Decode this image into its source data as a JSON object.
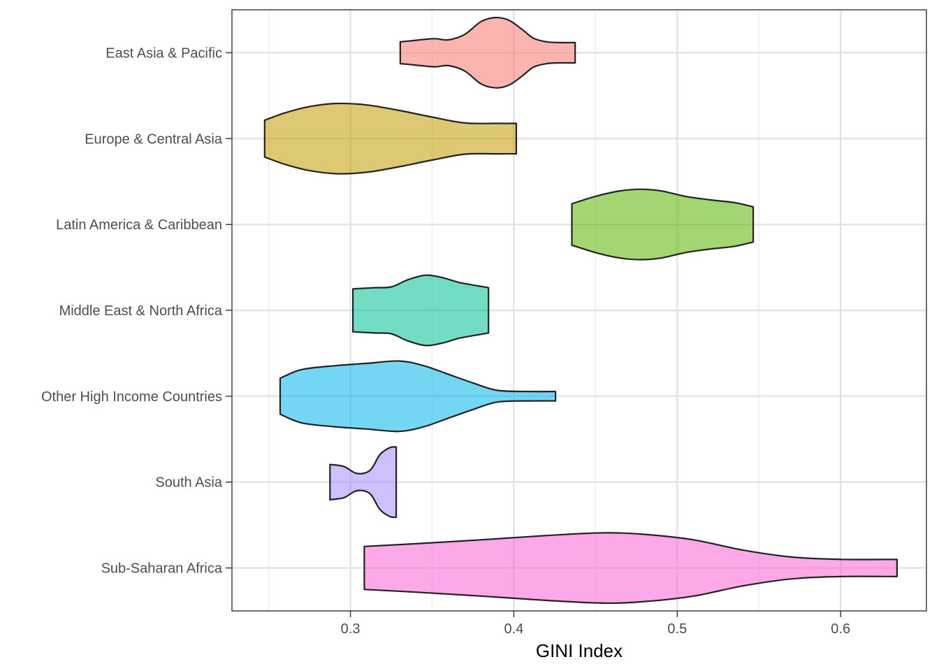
{
  "chart_data": {
    "type": "violin",
    "xlabel": "GINI Index",
    "ylabel": "",
    "xlim": [
      0.2275,
      0.6525
    ],
    "x_ticks": [
      "0.3",
      "0.4",
      "0.5",
      "0.6"
    ],
    "x_tick_values": [
      0.3,
      0.4,
      0.5,
      0.6
    ],
    "x_minor_values": [
      0.25,
      0.35,
      0.45,
      0.55
    ],
    "grid": true,
    "legend": "none",
    "categories": [
      "East Asia & Pacific",
      "Europe & Central Asia",
      "Latin America & Caribbean",
      "Middle East & North Africa",
      "Other High Income Countries",
      "South Asia",
      "Sub-Saharan Africa"
    ],
    "series": [
      {
        "color": "#F8766D",
        "profile": [
          [
            0.3305,
            0.28
          ],
          [
            0.336,
            0.3
          ],
          [
            0.345,
            0.34
          ],
          [
            0.352,
            0.36
          ],
          [
            0.36,
            0.33
          ],
          [
            0.37,
            0.47
          ],
          [
            0.38,
            0.8
          ],
          [
            0.389,
            0.9
          ],
          [
            0.397,
            0.83
          ],
          [
            0.405,
            0.6
          ],
          [
            0.412,
            0.37
          ],
          [
            0.42,
            0.28
          ],
          [
            0.428,
            0.26
          ],
          [
            0.4375,
            0.26
          ]
        ]
      },
      {
        "color": "#C49A00",
        "profile": [
          [
            0.2475,
            0.47
          ],
          [
            0.26,
            0.66
          ],
          [
            0.275,
            0.82
          ],
          [
            0.292,
            0.9
          ],
          [
            0.31,
            0.86
          ],
          [
            0.33,
            0.72
          ],
          [
            0.35,
            0.55
          ],
          [
            0.37,
            0.4
          ],
          [
            0.39,
            0.39
          ],
          [
            0.4015,
            0.39
          ]
        ]
      },
      {
        "color": "#53B400",
        "profile": [
          [
            0.4355,
            0.53
          ],
          [
            0.45,
            0.72
          ],
          [
            0.465,
            0.86
          ],
          [
            0.478,
            0.9
          ],
          [
            0.49,
            0.86
          ],
          [
            0.505,
            0.72
          ],
          [
            0.52,
            0.63
          ],
          [
            0.535,
            0.56
          ],
          [
            0.5465,
            0.45
          ]
        ]
      },
      {
        "color": "#00C094",
        "profile": [
          [
            0.3015,
            0.55
          ],
          [
            0.315,
            0.58
          ],
          [
            0.325,
            0.6
          ],
          [
            0.335,
            0.78
          ],
          [
            0.346,
            0.9
          ],
          [
            0.356,
            0.84
          ],
          [
            0.366,
            0.72
          ],
          [
            0.376,
            0.64
          ],
          [
            0.3845,
            0.58
          ]
        ]
      },
      {
        "color": "#00B6EB",
        "profile": [
          [
            0.257,
            0.46
          ],
          [
            0.27,
            0.68
          ],
          [
            0.29,
            0.78
          ],
          [
            0.31,
            0.84
          ],
          [
            0.33,
            0.9
          ],
          [
            0.345,
            0.78
          ],
          [
            0.36,
            0.56
          ],
          [
            0.375,
            0.34
          ],
          [
            0.39,
            0.15
          ],
          [
            0.41,
            0.12
          ],
          [
            0.4255,
            0.12
          ]
        ]
      },
      {
        "color": "#A58AFF",
        "profile": [
          [
            0.2875,
            0.45
          ],
          [
            0.296,
            0.4
          ],
          [
            0.304,
            0.22
          ],
          [
            0.312,
            0.3
          ],
          [
            0.318,
            0.7
          ],
          [
            0.324,
            0.88
          ],
          [
            0.328,
            0.9
          ]
        ]
      },
      {
        "color": "#FB61D7",
        "profile": [
          [
            0.3085,
            0.55
          ],
          [
            0.34,
            0.62
          ],
          [
            0.38,
            0.72
          ],
          [
            0.42,
            0.83
          ],
          [
            0.455,
            0.9
          ],
          [
            0.48,
            0.86
          ],
          [
            0.51,
            0.72
          ],
          [
            0.54,
            0.46
          ],
          [
            0.57,
            0.28
          ],
          [
            0.6,
            0.22
          ],
          [
            0.6345,
            0.22
          ]
        ]
      }
    ]
  }
}
